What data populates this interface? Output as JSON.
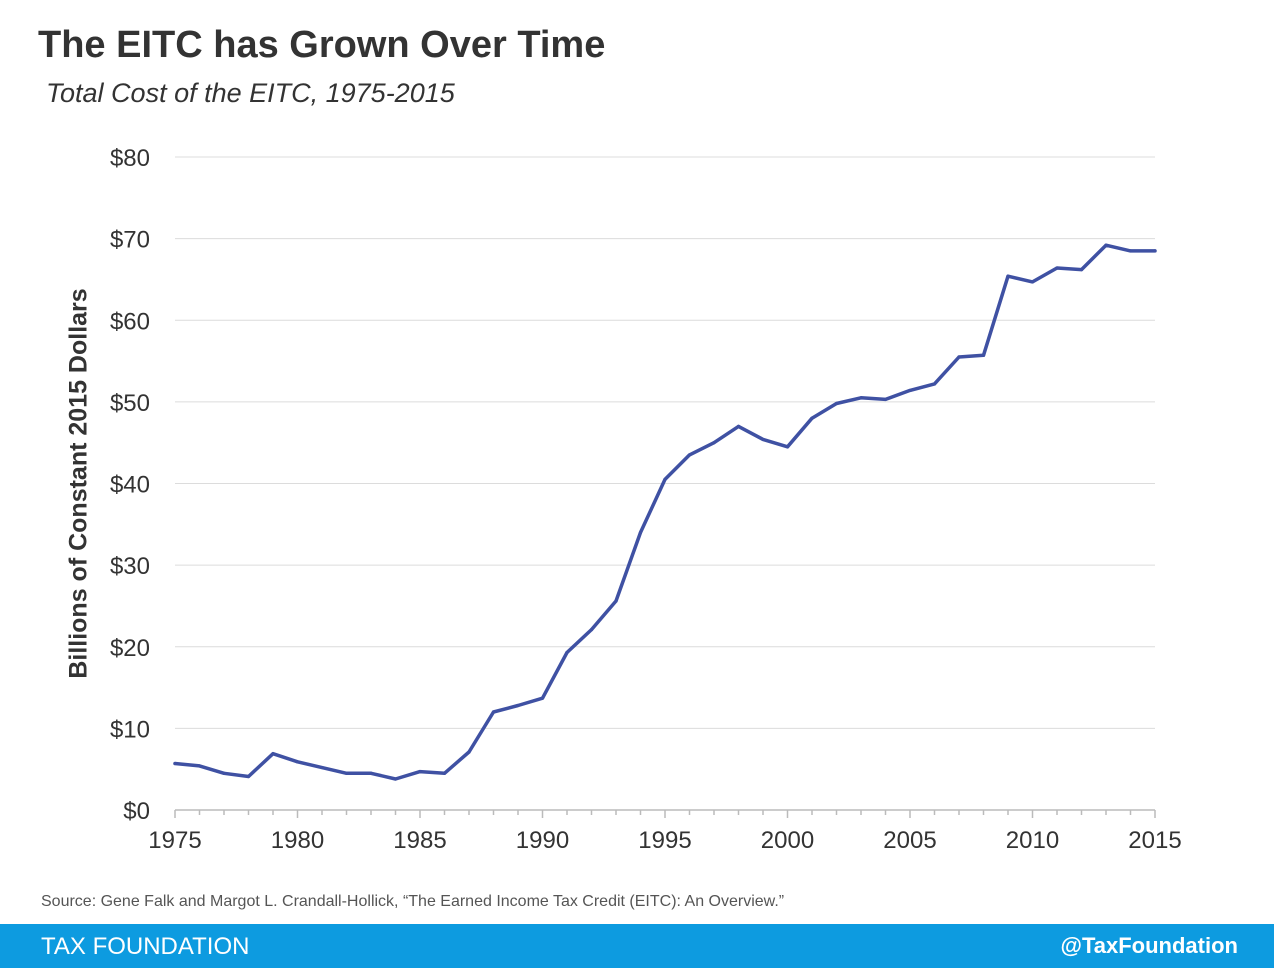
{
  "title": "The EITC has Grown Over Time",
  "subtitle": "Total Cost of the EITC, 1975-2015",
  "source": "Source: Gene Falk and Margot L. Crandall-Hollick, “The Earned Income Tax Credit (EITC): An Overview.”",
  "footer": {
    "brand": "TAX FOUNDATION",
    "handle": "@TaxFoundation",
    "bar_color": "#0d9be0"
  },
  "chart_data": {
    "type": "line",
    "title": "The EITC has Grown Over Time",
    "subtitle": "Total Cost of the EITC, 1975-2015",
    "xlabel": "",
    "ylabel": "Billions of Constant 2015 Dollars",
    "xlim": [
      1975,
      2015
    ],
    "ylim": [
      0,
      80
    ],
    "x_ticks": [
      1975,
      1980,
      1985,
      1990,
      1995,
      2000,
      2005,
      2010,
      2015
    ],
    "x_tick_labels": [
      "1975",
      "1980",
      "1985",
      "1990",
      "1995",
      "2000",
      "2005",
      "2010",
      "2015"
    ],
    "y_ticks": [
      0,
      10,
      20,
      30,
      40,
      50,
      60,
      70,
      80
    ],
    "y_tick_labels": [
      "$0",
      "$10",
      "$20",
      "$30",
      "$40",
      "$50",
      "$60",
      "$70",
      "$80"
    ],
    "grid": true,
    "legend": "none",
    "series": [
      {
        "color": "#3f51a3",
        "x": [
          1975,
          1976,
          1977,
          1978,
          1979,
          1980,
          1981,
          1982,
          1983,
          1984,
          1985,
          1986,
          1987,
          1988,
          1989,
          1990,
          1991,
          1992,
          1993,
          1994,
          1995,
          1996,
          1997,
          1998,
          1999,
          2000,
          2001,
          2002,
          2003,
          2004,
          2005,
          2006,
          2007,
          2008,
          2009,
          2010,
          2011,
          2012,
          2013,
          2014,
          2015
        ],
        "values": [
          5.7,
          5.4,
          4.5,
          4.1,
          6.9,
          5.9,
          5.2,
          4.5,
          4.5,
          3.8,
          4.7,
          4.5,
          7.1,
          12.0,
          12.8,
          13.7,
          19.3,
          22.1,
          25.6,
          34.0,
          40.5,
          43.5,
          45.0,
          47.0,
          45.4,
          44.5,
          48.0,
          49.8,
          50.5,
          50.3,
          51.4,
          52.2,
          55.5,
          55.7,
          65.4,
          64.7,
          66.4,
          66.2,
          69.2,
          68.5,
          68.5
        ]
      }
    ]
  }
}
